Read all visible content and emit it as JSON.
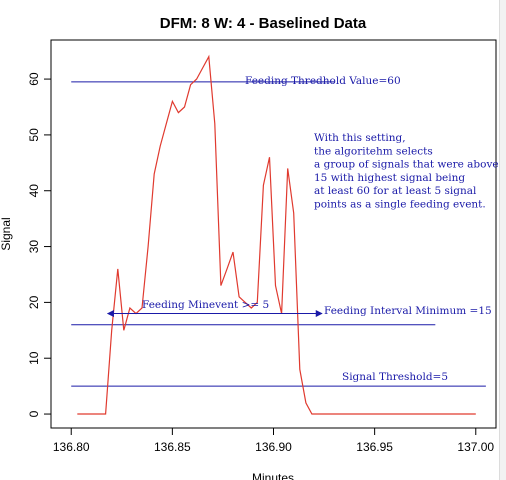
{
  "chart_data": {
    "type": "line",
    "title": "DFM: 8  W: 4 - Baselined Data",
    "xlabel": "Minutes",
    "ylabel": "Signal",
    "xlim": [
      136.79,
      137.01
    ],
    "ylim": [
      -2.5,
      67
    ],
    "x_ticks": [
      136.8,
      136.85,
      136.9,
      136.95,
      137.0
    ],
    "x_tick_labels": [
      "136.80",
      "136.85",
      "136.90",
      "136.95",
      "137.00"
    ],
    "y_ticks": [
      0,
      10,
      20,
      30,
      40,
      50,
      60
    ],
    "y_tick_labels": [
      "0",
      "10",
      "20",
      "30",
      "40",
      "50",
      "60"
    ],
    "line_color": "#e03a2f",
    "annotation_color": "#1a1aa8",
    "series": [
      {
        "x": [
          136.803,
          136.817,
          136.82,
          136.823,
          136.826,
          136.829,
          136.832,
          136.835,
          136.838,
          136.841,
          136.844,
          136.847,
          136.85,
          136.853,
          136.856,
          136.859,
          136.862,
          136.865,
          136.868,
          136.871,
          136.874,
          136.877,
          136.88,
          136.883,
          136.886,
          136.889,
          136.892,
          136.895,
          136.898,
          136.901,
          136.904,
          136.907,
          136.91,
          136.913,
          136.916,
          136.919,
          136.922,
          136.925,
          136.928,
          136.931,
          136.934,
          136.937,
          136.94,
          137.0
        ],
        "y": [
          0,
          0,
          15,
          26,
          15,
          19,
          18,
          19,
          30,
          43,
          48,
          52,
          56,
          54,
          55,
          59,
          60,
          62,
          64,
          52,
          23,
          26,
          29,
          21,
          20,
          19,
          20,
          41,
          46,
          23,
          18,
          44,
          36,
          8,
          2,
          0,
          0,
          0,
          0,
          0,
          0,
          0,
          0,
          0
        ]
      }
    ],
    "hlines": [
      {
        "y": 59.5,
        "x_from": 136.8,
        "x_to": 136.93,
        "label": "Feeding Thredhold Value=60"
      },
      {
        "y": 16,
        "x_from": 136.8,
        "x_to": 136.98,
        "label": "Feeding Interval Minimum =15"
      },
      {
        "y": 5,
        "x_from": 136.8,
        "x_to": 137.005,
        "label": "Signal Threshold=5"
      }
    ],
    "arrow": {
      "y": 18,
      "x_from": 136.818,
      "x_to": 136.924,
      "label": "Feeding Minevent >= 5"
    },
    "note_lines": [
      "With this setting,",
      "the algoritehm selects",
      "a group of signals that were above",
      "15 with highest signal being",
      "at least 60 for at least 5 signal",
      "points as a single feeding event."
    ]
  }
}
